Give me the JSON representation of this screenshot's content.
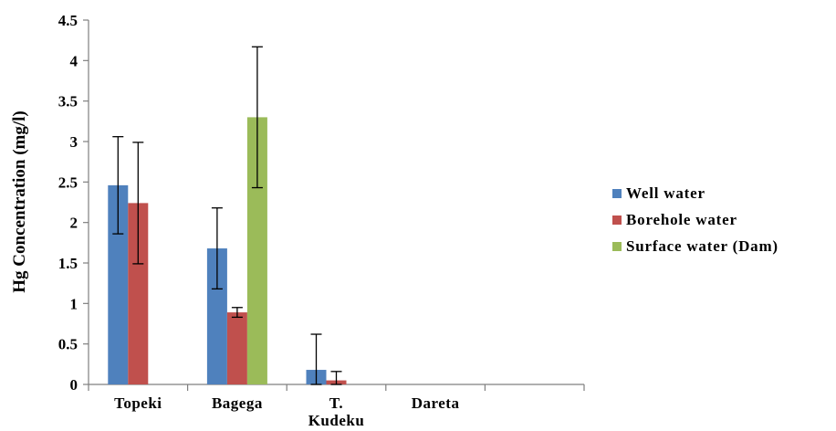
{
  "chart_data": {
    "type": "bar",
    "title": "",
    "ylabel": "Hg Concentration (mg/l)",
    "xlabel": "",
    "ylim": [
      0,
      4.5
    ],
    "yticks": [
      "0",
      "0.5",
      "1",
      "1.5",
      "2",
      "2.5",
      "3",
      "3.5",
      "4",
      "4.5"
    ],
    "categories": [
      "Topeki",
      "Bagega",
      "T. Kudeku",
      "Dareta",
      ""
    ],
    "category_lines": [
      [
        "Topeki"
      ],
      [
        "Bagega"
      ],
      [
        "T.",
        "Kudeku"
      ],
      [
        "Dareta"
      ],
      [
        ""
      ]
    ],
    "series": [
      {
        "name": "Well water",
        "color": "#4f81bd",
        "values": [
          2.46,
          1.68,
          0.18,
          0,
          0
        ],
        "errors": [
          0.6,
          0.5,
          0.44,
          null,
          null
        ]
      },
      {
        "name": "Borehole water",
        "color": "#c0504d",
        "values": [
          2.24,
          0.89,
          0.05,
          0,
          0
        ],
        "errors": [
          0.75,
          0.06,
          0.11,
          null,
          null
        ]
      },
      {
        "name": "Surface water (Dam)",
        "color": "#9bbb59",
        "values": [
          null,
          3.3,
          null,
          null,
          null
        ],
        "errors": [
          null,
          0.87,
          null,
          null,
          null
        ]
      }
    ],
    "legend": "right",
    "grid": false
  }
}
